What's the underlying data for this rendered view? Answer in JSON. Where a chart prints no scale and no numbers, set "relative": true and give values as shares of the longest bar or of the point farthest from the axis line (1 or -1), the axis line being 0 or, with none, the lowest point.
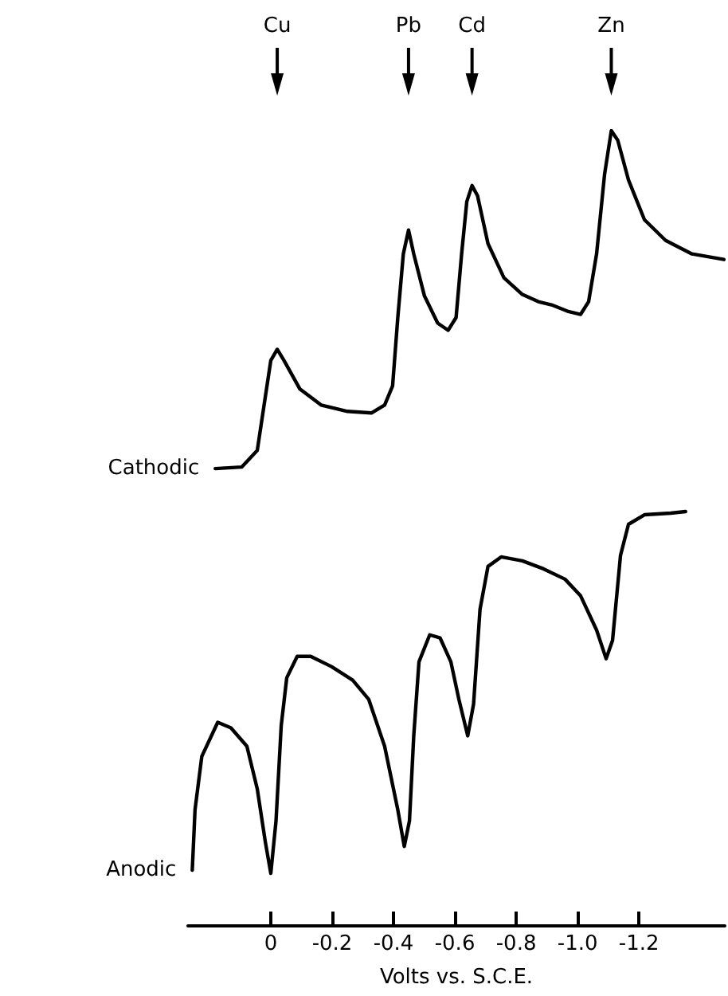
{
  "chart_data": {
    "type": "line",
    "relative": true,
    "xlabel": "Volts vs. S.C.E.",
    "xlim": [
      0.27,
      -1.48
    ],
    "xticks": [
      0,
      -0.2,
      -0.4,
      -0.6,
      -0.8,
      {
        "value": -1,
        "label": "-1.0"
      },
      -1.2
    ],
    "legend": false,
    "marker": "none",
    "line_style": "solid",
    "annotations": [
      "Cu",
      "Pb",
      "Cd",
      "Zn"
    ],
    "series": [
      {
        "name": "Cathodic",
        "color": "#000000",
        "x": [
          0.181,
          0.095,
          0.044,
          0.018,
          0,
          -0.021,
          -0.043,
          -0.095,
          -0.164,
          -0.25,
          -0.328,
          -0.371,
          -0.397,
          -0.414,
          -0.432,
          -0.449,
          -0.466,
          -0.501,
          -0.544,
          -0.578,
          -0.604,
          -0.622,
          -0.639,
          -0.656,
          -0.674,
          -0.708,
          -0.76,
          -0.82,
          -0.872,
          -0.915,
          -0.967,
          -1.01,
          -1.036,
          -1.062,
          -1.088,
          -1.11,
          -1.131,
          -1.166,
          -1.218,
          -1.287,
          -1.373,
          -1.477
        ],
        "values": [
          0.575,
          0.577,
          0.598,
          0.665,
          0.711,
          0.725,
          0.711,
          0.675,
          0.655,
          0.647,
          0.645,
          0.655,
          0.679,
          0.765,
          0.845,
          0.875,
          0.845,
          0.792,
          0.758,
          0.749,
          0.765,
          0.845,
          0.911,
          0.931,
          0.918,
          0.858,
          0.815,
          0.794,
          0.785,
          0.781,
          0.773,
          0.769,
          0.785,
          0.845,
          0.945,
          1,
          0.988,
          0.938,
          0.888,
          0.862,
          0.845,
          0.838
        ]
      },
      {
        "name": "Anodic",
        "color": "#000000",
        "x": [
          0.256,
          0.247,
          0.225,
          0.173,
          0.13,
          0.078,
          0.044,
          0.018,
          0,
          -0.017,
          -0.034,
          -0.052,
          -0.086,
          -0.13,
          -0.198,
          -0.267,
          -0.319,
          -0.371,
          -0.414,
          -0.435,
          -0.452,
          -0.466,
          -0.483,
          -0.518,
          -0.552,
          -0.587,
          -0.613,
          -0.642,
          -0.661,
          -0.682,
          -0.708,
          -0.751,
          -0.82,
          -0.889,
          -0.959,
          -1.01,
          -1.062,
          -1.093,
          -1.114,
          -1.14,
          -1.166,
          -1.218,
          -1.304,
          -1.352
        ],
        "values": [
          0.07,
          0.146,
          0.213,
          0.256,
          0.249,
          0.226,
          0.172,
          0.106,
          0.066,
          0.132,
          0.252,
          0.312,
          0.339,
          0.339,
          0.326,
          0.309,
          0.285,
          0.226,
          0.146,
          0.1,
          0.132,
          0.239,
          0.332,
          0.366,
          0.362,
          0.332,
          0.285,
          0.239,
          0.279,
          0.398,
          0.452,
          0.464,
          0.459,
          0.449,
          0.436,
          0.415,
          0.372,
          0.336,
          0.359,
          0.466,
          0.505,
          0.517,
          0.519,
          0.521
        ]
      }
    ]
  }
}
